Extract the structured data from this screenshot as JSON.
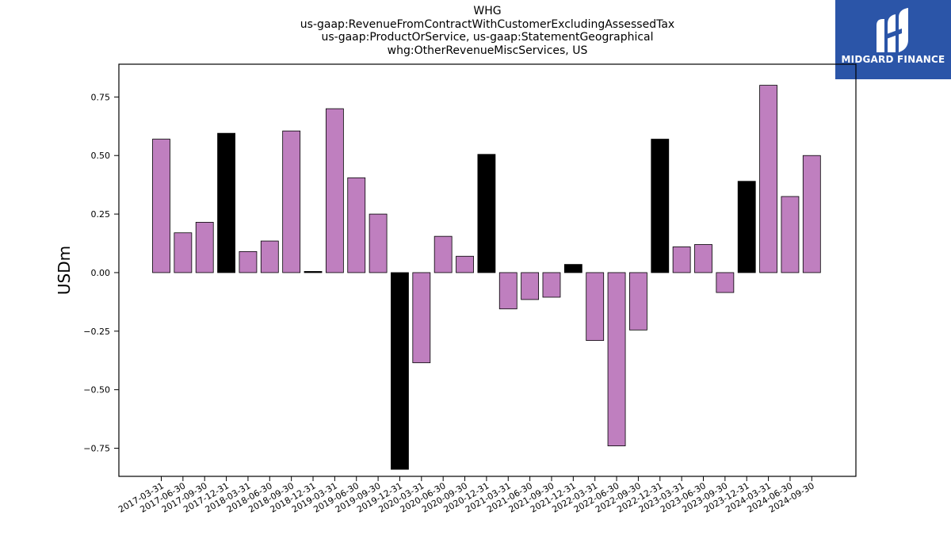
{
  "chart_data": {
    "type": "bar",
    "title_lines": [
      "WHG",
      "us-gaap:RevenueFromContractWithCustomerExcludingAssessedTax",
      "us-gaap:ProductOrService, us-gaap:StatementGeographical",
      "whg:OtherRevenueMiscServices, US"
    ],
    "ylabel": "USDm",
    "xlabel": "",
    "ylim": [
      -0.87,
      0.89
    ],
    "yticks": [
      -0.75,
      -0.5,
      -0.25,
      0.0,
      0.25,
      0.5,
      0.75
    ],
    "ytick_labels": [
      "−0.75",
      "−0.50",
      "−0.25",
      "0.00",
      "0.25",
      "0.50",
      "0.75"
    ],
    "categories": [
      "2017-03-31",
      "2017-06-30",
      "2017-09-30",
      "2017-12-31",
      "2018-03-31",
      "2018-06-30",
      "2018-09-30",
      "2018-12-31",
      "2019-03-31",
      "2019-06-30",
      "2019-09-30",
      "2019-12-31",
      "2020-03-31",
      "2020-06-30",
      "2020-09-30",
      "2020-12-31",
      "2021-03-31",
      "2021-06-30",
      "2021-09-30",
      "2021-12-31",
      "2022-03-31",
      "2022-06-30",
      "2022-09-30",
      "2022-12-31",
      "2023-03-31",
      "2023-06-30",
      "2023-09-30",
      "2023-12-31",
      "2024-03-31",
      "2024-06-30",
      "2024-09-30"
    ],
    "values": [
      0.57,
      0.17,
      0.215,
      0.595,
      0.09,
      0.135,
      0.605,
      0.005,
      0.7,
      0.405,
      0.25,
      -0.84,
      -0.385,
      0.155,
      0.07,
      0.505,
      -0.155,
      -0.115,
      -0.105,
      0.035,
      -0.29,
      -0.74,
      -0.245,
      0.57,
      0.11,
      0.12,
      -0.085,
      0.39,
      0.8,
      0.325,
      0.5
    ],
    "quarter_end_highlight": [
      false,
      false,
      false,
      true,
      false,
      false,
      false,
      true,
      false,
      false,
      false,
      true,
      false,
      false,
      false,
      true,
      false,
      false,
      false,
      true,
      false,
      false,
      false,
      true,
      false,
      false,
      false,
      true,
      false,
      false,
      false
    ],
    "colors": {
      "bar": "#bf7fbf",
      "highlight": "#000000",
      "edge": "#000000"
    },
    "grid": false,
    "legend": "none"
  },
  "logo": {
    "text": "MIDGARD FINANCE",
    "bg_color": "#2b55a8"
  }
}
